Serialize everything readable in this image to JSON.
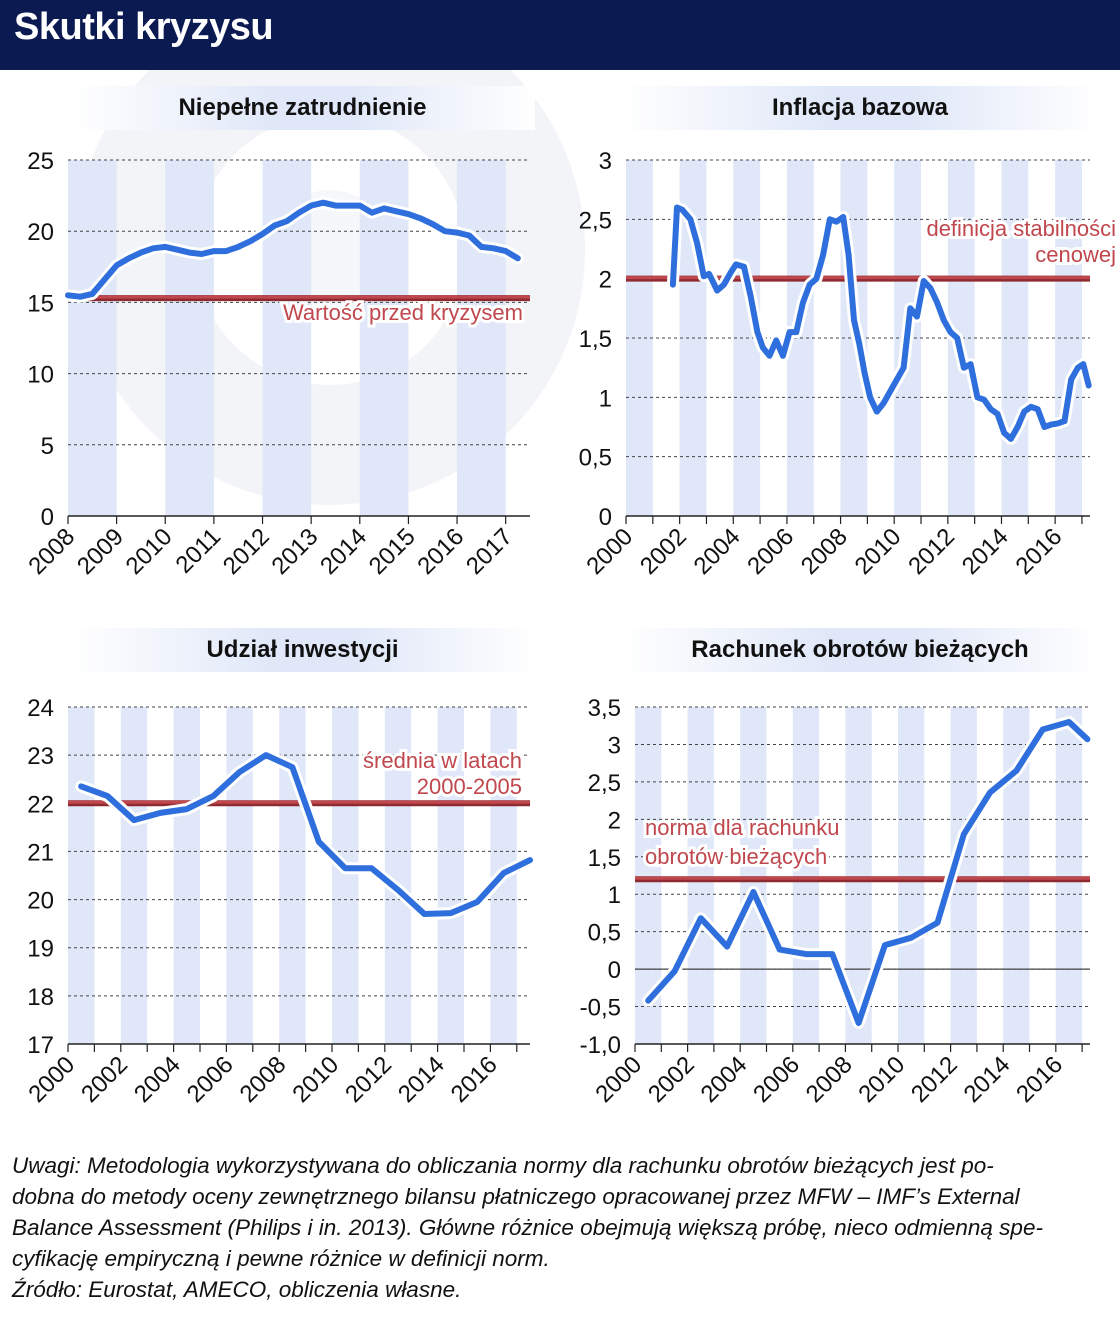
{
  "header": {
    "title": "Skutki kryzysu"
  },
  "colors": {
    "header_bg": "#0c1a52",
    "line": "#2f6fdd",
    "reference": "#c0474d",
    "stripe": "#dfe7f8"
  },
  "chart_data": [
    {
      "type": "line",
      "title": "Niepełne zatrudnienie",
      "xlabel": "",
      "ylabel": "",
      "xlim": [
        2008,
        2017.5
      ],
      "ylim": [
        0,
        25
      ],
      "yticks": [
        0,
        5,
        10,
        15,
        20,
        25
      ],
      "ytick_labels": [
        "0",
        "5",
        "10",
        "15",
        "20",
        "25"
      ],
      "xticks": [
        2008,
        2009,
        2010,
        2011,
        2012,
        2013,
        2014,
        2015,
        2016,
        2017
      ],
      "xtick_labels": [
        "2008",
        "2009",
        "2010",
        "2011",
        "2012",
        "2013",
        "2014",
        "2015",
        "2016",
        "2017"
      ],
      "grid": "horizontal-dashed",
      "reference_line": {
        "value": 15.3,
        "label": [
          "Wartość przed kryzysem"
        ]
      },
      "series": [
        {
          "x": [
            2008.0,
            2008.25,
            2008.5,
            2008.75,
            2009.0,
            2009.25,
            2009.5,
            2009.75,
            2010.0,
            2010.25,
            2010.5,
            2010.75,
            2011.0,
            2011.25,
            2011.5,
            2011.75,
            2012.0,
            2012.25,
            2012.5,
            2012.75,
            2013.0,
            2013.25,
            2013.5,
            2013.75,
            2014.0,
            2014.25,
            2014.5,
            2014.75,
            2015.0,
            2015.25,
            2015.5,
            2015.75,
            2016.0,
            2016.25,
            2016.5,
            2016.75,
            2017.0,
            2017.25
          ],
          "values": [
            15.5,
            15.4,
            15.6,
            16.6,
            17.6,
            18.1,
            18.5,
            18.8,
            18.9,
            18.7,
            18.5,
            18.4,
            18.6,
            18.6,
            18.9,
            19.3,
            19.8,
            20.4,
            20.7,
            21.3,
            21.8,
            22.0,
            21.8,
            21.8,
            21.8,
            21.3,
            21.6,
            21.4,
            21.2,
            20.9,
            20.5,
            20.0,
            19.9,
            19.7,
            18.9,
            18.8,
            18.6,
            18.1
          ]
        }
      ]
    },
    {
      "type": "line",
      "title": "Inflacja bazowa",
      "xlabel": "",
      "ylabel": "",
      "xlim": [
        2000,
        2017.3
      ],
      "ylim": [
        0,
        3
      ],
      "yticks": [
        0,
        0.5,
        1,
        1.5,
        2,
        2.5,
        3
      ],
      "ytick_labels": [
        "0",
        "0,5",
        "1",
        "1,5",
        "2",
        "2,5",
        "3"
      ],
      "xticks": [
        2000,
        2002,
        2004,
        2006,
        2008,
        2010,
        2012,
        2014,
        2016
      ],
      "xtick_labels": [
        "2000",
        "2002",
        "2004",
        "2006",
        "2008",
        "2010",
        "2012",
        "2014",
        "2016"
      ],
      "grid": "horizontal-dashed",
      "reference_line": {
        "value": 2.0,
        "label": [
          "definicja stabilności",
          "cenowej"
        ]
      },
      "series": [
        {
          "x": [
            2001.75,
            2001.9,
            2002.1,
            2002.4,
            2002.65,
            2002.9,
            2003.1,
            2003.4,
            2003.65,
            2003.9,
            2004.1,
            2004.4,
            2004.65,
            2004.9,
            2005.1,
            2005.35,
            2005.6,
            2005.85,
            2006.1,
            2006.35,
            2006.6,
            2006.85,
            2007.1,
            2007.35,
            2007.6,
            2007.85,
            2008.1,
            2008.3,
            2008.5,
            2008.7,
            2008.9,
            2009.1,
            2009.35,
            2009.6,
            2009.85,
            2010.1,
            2010.35,
            2010.6,
            2010.85,
            2011.1,
            2011.35,
            2011.6,
            2011.85,
            2012.1,
            2012.35,
            2012.6,
            2012.85,
            2013.1,
            2013.35,
            2013.6,
            2013.85,
            2014.1,
            2014.35,
            2014.6,
            2014.85,
            2015.1,
            2015.35,
            2015.6,
            2015.85,
            2016.1,
            2016.35,
            2016.6,
            2016.85,
            2017.05,
            2017.25
          ],
          "values": [
            1.95,
            2.6,
            2.58,
            2.5,
            2.3,
            2.02,
            2.04,
            1.9,
            1.95,
            2.05,
            2.12,
            2.1,
            1.85,
            1.55,
            1.42,
            1.35,
            1.48,
            1.35,
            1.55,
            1.55,
            1.8,
            1.95,
            2.0,
            2.2,
            2.5,
            2.48,
            2.52,
            2.2,
            1.65,
            1.45,
            1.2,
            1.0,
            0.88,
            0.95,
            1.05,
            1.15,
            1.25,
            1.75,
            1.68,
            1.98,
            1.92,
            1.8,
            1.65,
            1.55,
            1.5,
            1.25,
            1.28,
            1.0,
            0.98,
            0.9,
            0.86,
            0.7,
            0.65,
            0.75,
            0.88,
            0.92,
            0.9,
            0.75,
            0.77,
            0.78,
            0.8,
            1.15,
            1.25,
            1.28,
            1.1
          ]
        }
      ]
    },
    {
      "type": "line",
      "title": "Udział inwestycji",
      "xlabel": "",
      "ylabel": "",
      "xlim": [
        2000,
        2017.5
      ],
      "ylim": [
        17,
        24
      ],
      "yticks": [
        17,
        18,
        19,
        20,
        21,
        22,
        23,
        24
      ],
      "ytick_labels": [
        "17",
        "18",
        "19",
        "20",
        "21",
        "22",
        "23",
        "24"
      ],
      "xticks": [
        2000,
        2002,
        2004,
        2006,
        2008,
        2010,
        2012,
        2014,
        2016
      ],
      "xtick_labels": [
        "2000",
        "2002",
        "2004",
        "2006",
        "2008",
        "2010",
        "2012",
        "2014",
        "2016"
      ],
      "grid": "horizontal-dashed",
      "reference_line": {
        "value": 22.0,
        "label": [
          "średnia w latach",
          "2000-2005"
        ]
      },
      "series": [
        {
          "x": [
            2000.5,
            2001.5,
            2002.5,
            2003.5,
            2004.5,
            2005.5,
            2006.5,
            2007.5,
            2008.5,
            2009.5,
            2010.5,
            2011.5,
            2012.5,
            2013.5,
            2014.5,
            2015.5,
            2016.5,
            2017.5
          ],
          "values": [
            22.35,
            22.15,
            21.65,
            21.8,
            21.88,
            22.15,
            22.65,
            23.0,
            22.75,
            21.2,
            20.65,
            20.65,
            20.2,
            19.7,
            19.72,
            19.95,
            20.55,
            20.82
          ]
        }
      ]
    },
    {
      "type": "line",
      "title": "Rachunek obrotów bieżących",
      "xlabel": "",
      "ylabel": "",
      "xlim": [
        2000,
        2017.3
      ],
      "ylim": [
        -1.0,
        3.5
      ],
      "yticks": [
        -1.0,
        -0.5,
        0,
        0.5,
        1,
        1.5,
        2,
        2.5,
        3,
        3.5
      ],
      "ytick_labels": [
        "-1,0",
        "-0,5",
        "0",
        "0,5",
        "1",
        "1,5",
        "2",
        "2,5",
        "3",
        "3,5"
      ],
      "xticks": [
        2000,
        2002,
        2004,
        2006,
        2008,
        2010,
        2012,
        2014,
        2016
      ],
      "xtick_labels": [
        "2000",
        "2002",
        "2004",
        "2006",
        "2008",
        "2010",
        "2012",
        "2014",
        "2016"
      ],
      "grid": "horizontal-dashed",
      "reference_line": {
        "value": 1.2,
        "label": [
          "norma dla rachunku",
          "obrotów bieżących"
        ]
      },
      "series": [
        {
          "x": [
            2000.5,
            2001.5,
            2002.5,
            2003.5,
            2004.5,
            2005.5,
            2006.5,
            2007.5,
            2008.5,
            2009.5,
            2010.5,
            2011.5,
            2012.5,
            2013.5,
            2014.5,
            2015.5,
            2016.5,
            2017.2
          ],
          "values": [
            -0.42,
            -0.03,
            0.68,
            0.3,
            1.03,
            0.26,
            0.2,
            0.2,
            -0.72,
            0.32,
            0.42,
            0.62,
            1.8,
            2.36,
            2.65,
            3.2,
            3.3,
            3.07
          ]
        }
      ]
    }
  ],
  "footnotes": {
    "lines": [
      "Uwagi: Metodologia wykorzystywana do obliczania normy dla rachunku obrotów bieżących jest po-",
      "dobna do metody oceny zewnętrznego bilansu płatniczego opracowanej przez MFW – IMF’s External",
      "Balance Assessment (Philips i in. 2013). Główne różnice obejmują większą próbę, nieco odmienną spe-",
      "cyfikację empiryczną i pewne różnice w definicji norm.",
      "Źródło: Eurostat, AMECO, obliczenia własne."
    ]
  }
}
